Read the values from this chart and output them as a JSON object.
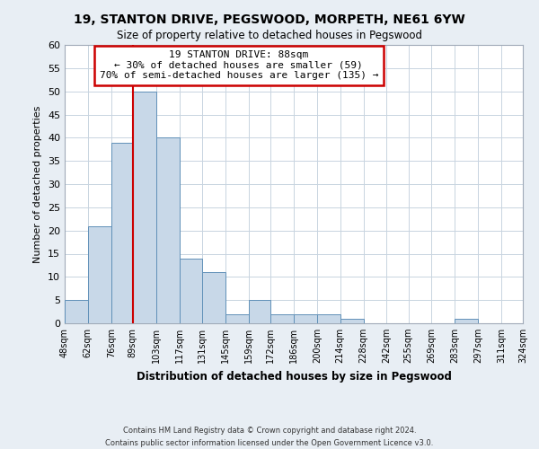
{
  "title": "19, STANTON DRIVE, PEGSWOOD, MORPETH, NE61 6YW",
  "subtitle": "Size of property relative to detached houses in Pegswood",
  "xlabel": "Distribution of detached houses by size in Pegswood",
  "ylabel": "Number of detached properties",
  "bar_edges": [
    48,
    62,
    76,
    89,
    103,
    117,
    131,
    145,
    159,
    172,
    186,
    200,
    214,
    228,
    242,
    255,
    269,
    283,
    297,
    311,
    324
  ],
  "bar_heights": [
    5,
    21,
    39,
    50,
    40,
    14,
    11,
    2,
    5,
    2,
    2,
    2,
    1,
    0,
    0,
    0,
    0,
    1,
    0,
    0,
    0
  ],
  "bar_color": "#c8d8e8",
  "bar_edge_color": "#6090b8",
  "vline_x": 89,
  "vline_color": "#cc0000",
  "ylim": [
    0,
    60
  ],
  "yticks": [
    0,
    5,
    10,
    15,
    20,
    25,
    30,
    35,
    40,
    45,
    50,
    55,
    60
  ],
  "xtick_labels": [
    "48sqm",
    "62sqm",
    "76sqm",
    "89sqm",
    "103sqm",
    "117sqm",
    "131sqm",
    "145sqm",
    "159sqm",
    "172sqm",
    "186sqm",
    "200sqm",
    "214sqm",
    "228sqm",
    "242sqm",
    "255sqm",
    "269sqm",
    "283sqm",
    "297sqm",
    "311sqm",
    "324sqm"
  ],
  "annotation_title": "19 STANTON DRIVE: 88sqm",
  "annotation_line1": "← 30% of detached houses are smaller (59)",
  "annotation_line2": "70% of semi-detached houses are larger (135) →",
  "annotation_box_color": "#ffffff",
  "annotation_box_edge": "#cc0000",
  "footer_line1": "Contains HM Land Registry data © Crown copyright and database right 2024.",
  "footer_line2": "Contains public sector information licensed under the Open Government Licence v3.0.",
  "bg_color": "#e8eef4",
  "plot_bg_color": "#ffffff",
  "grid_color": "#c8d4e0"
}
